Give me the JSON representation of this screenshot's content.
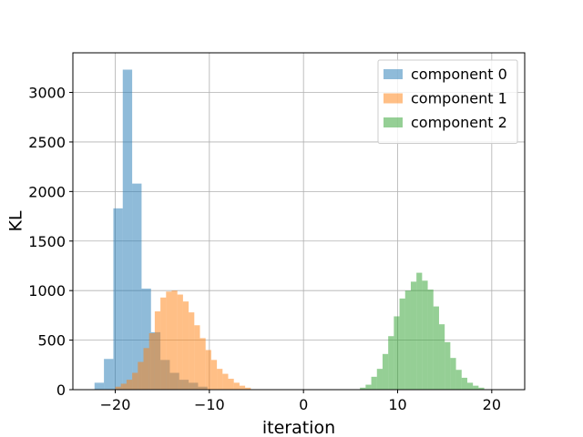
{
  "chart_data": {
    "type": "histogram",
    "title": "",
    "xlabel": "iteration",
    "ylabel": "KL",
    "xlim": [
      -24.5,
      23.5
    ],
    "ylim": [
      0,
      3400
    ],
    "xticks": [
      -20,
      -10,
      0,
      10,
      20
    ],
    "yticks": [
      0,
      500,
      1000,
      1500,
      2000,
      2500,
      3000
    ],
    "grid": true,
    "legend_position": "top-right",
    "series": [
      {
        "name": "component 0",
        "color": "#1f77b4",
        "opacity": 0.5,
        "bins": [
          {
            "x0": -22.2,
            "x1": -21.2,
            "count": 70
          },
          {
            "x0": -21.2,
            "x1": -20.2,
            "count": 310
          },
          {
            "x0": -20.2,
            "x1": -19.2,
            "count": 1830
          },
          {
            "x0": -19.2,
            "x1": -18.2,
            "count": 3230
          },
          {
            "x0": -18.2,
            "x1": -17.2,
            "count": 2080
          },
          {
            "x0": -17.2,
            "x1": -16.2,
            "count": 1020
          },
          {
            "x0": -16.2,
            "x1": -15.2,
            "count": 580
          },
          {
            "x0": -15.2,
            "x1": -14.2,
            "count": 300
          },
          {
            "x0": -14.2,
            "x1": -13.2,
            "count": 170
          },
          {
            "x0": -13.2,
            "x1": -12.2,
            "count": 100
          },
          {
            "x0": -12.2,
            "x1": -11.2,
            "count": 70
          },
          {
            "x0": -11.2,
            "x1": -10.2,
            "count": 30
          }
        ]
      },
      {
        "name": "component 1",
        "color": "#ff7f0e",
        "opacity": 0.5,
        "bins": [
          {
            "x0": -20.0,
            "x1": -19.4,
            "count": 30
          },
          {
            "x0": -19.4,
            "x1": -18.8,
            "count": 60
          },
          {
            "x0": -18.8,
            "x1": -18.2,
            "count": 100
          },
          {
            "x0": -18.2,
            "x1": -17.6,
            "count": 170
          },
          {
            "x0": -17.6,
            "x1": -17.0,
            "count": 280
          },
          {
            "x0": -17.0,
            "x1": -16.4,
            "count": 420
          },
          {
            "x0": -16.4,
            "x1": -15.8,
            "count": 570
          },
          {
            "x0": -15.8,
            "x1": -15.2,
            "count": 790
          },
          {
            "x0": -15.2,
            "x1": -14.6,
            "count": 930
          },
          {
            "x0": -14.6,
            "x1": -14.0,
            "count": 990
          },
          {
            "x0": -14.0,
            "x1": -13.4,
            "count": 1000
          },
          {
            "x0": -13.4,
            "x1": -12.8,
            "count": 960
          },
          {
            "x0": -12.8,
            "x1": -12.2,
            "count": 890
          },
          {
            "x0": -12.2,
            "x1": -11.6,
            "count": 780
          },
          {
            "x0": -11.6,
            "x1": -11.0,
            "count": 650
          },
          {
            "x0": -11.0,
            "x1": -10.4,
            "count": 520
          },
          {
            "x0": -10.4,
            "x1": -9.8,
            "count": 400
          },
          {
            "x0": -9.8,
            "x1": -9.2,
            "count": 300
          },
          {
            "x0": -9.2,
            "x1": -8.6,
            "count": 210
          },
          {
            "x0": -8.6,
            "x1": -8.0,
            "count": 160
          },
          {
            "x0": -8.0,
            "x1": -7.4,
            "count": 110
          },
          {
            "x0": -7.4,
            "x1": -6.8,
            "count": 70
          },
          {
            "x0": -6.8,
            "x1": -6.2,
            "count": 40
          },
          {
            "x0": -6.2,
            "x1": -5.6,
            "count": 20
          }
        ]
      },
      {
        "name": "component 2",
        "color": "#2ca02c",
        "opacity": 0.5,
        "bins": [
          {
            "x0": 6.0,
            "x1": 6.6,
            "count": 20
          },
          {
            "x0": 6.6,
            "x1": 7.2,
            "count": 50
          },
          {
            "x0": 7.2,
            "x1": 7.8,
            "count": 130
          },
          {
            "x0": 7.8,
            "x1": 8.4,
            "count": 210
          },
          {
            "x0": 8.4,
            "x1": 9.0,
            "count": 360
          },
          {
            "x0": 9.0,
            "x1": 9.6,
            "count": 540
          },
          {
            "x0": 9.6,
            "x1": 10.2,
            "count": 740
          },
          {
            "x0": 10.2,
            "x1": 10.8,
            "count": 920
          },
          {
            "x0": 10.8,
            "x1": 11.4,
            "count": 1000
          },
          {
            "x0": 11.4,
            "x1": 12.0,
            "count": 1090
          },
          {
            "x0": 12.0,
            "x1": 12.6,
            "count": 1180
          },
          {
            "x0": 12.6,
            "x1": 13.2,
            "count": 1100
          },
          {
            "x0": 13.2,
            "x1": 13.8,
            "count": 1010
          },
          {
            "x0": 13.8,
            "x1": 14.4,
            "count": 840
          },
          {
            "x0": 14.4,
            "x1": 15.0,
            "count": 660
          },
          {
            "x0": 15.0,
            "x1": 15.6,
            "count": 480
          },
          {
            "x0": 15.6,
            "x1": 16.2,
            "count": 320
          },
          {
            "x0": 16.2,
            "x1": 16.8,
            "count": 200
          },
          {
            "x0": 16.8,
            "x1": 17.4,
            "count": 120
          },
          {
            "x0": 17.4,
            "x1": 18.0,
            "count": 70
          },
          {
            "x0": 18.0,
            "x1": 18.6,
            "count": 40
          },
          {
            "x0": 18.6,
            "x1": 19.2,
            "count": 20
          }
        ]
      }
    ]
  }
}
